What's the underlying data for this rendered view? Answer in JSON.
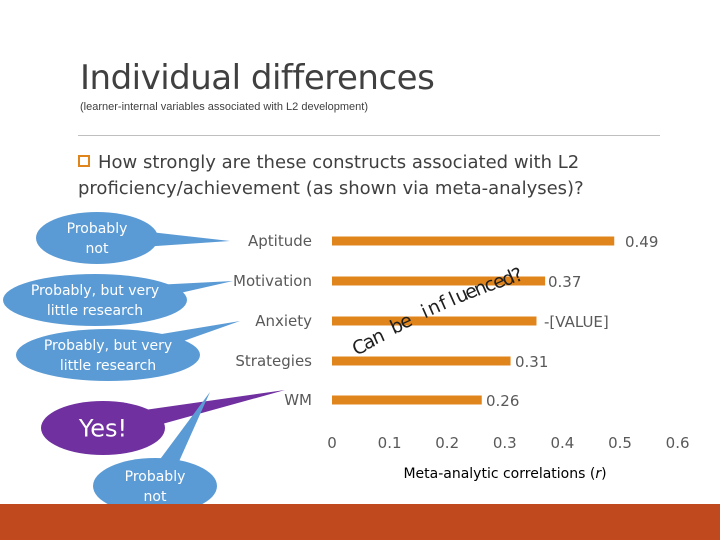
{
  "slide": {
    "title": "Individual differences",
    "subtitle": "(learner-internal variables associated with L2 development)",
    "question_line1": "How strongly are these constructs associated with L2",
    "question_line2": "proficiency/achievement (as shown via meta-analyses)?",
    "annotation": "Can be influenced?"
  },
  "callouts": [
    {
      "text": [
        "Probably",
        "not"
      ],
      "color": "#5b9bd5"
    },
    {
      "text": [
        "Probably, but very",
        "little research"
      ],
      "color": "#5b9bd5"
    },
    {
      "text": [
        "Probably, but very",
        "little research"
      ],
      "color": "#5b9bd5"
    },
    {
      "text": [
        "Yes!"
      ],
      "color": "#7030a0"
    },
    {
      "text": [
        "Probably",
        "not"
      ],
      "color": "#5b9bd5"
    }
  ],
  "chart_data": {
    "type": "bar",
    "orientation": "horizontal",
    "categories": [
      "Aptitude",
      "Motivation",
      "Anxiety",
      "Strategies",
      "WM"
    ],
    "values": [
      0.49,
      0.37,
      null,
      0.31,
      0.26
    ],
    "data_labels": [
      "0.49",
      "0.37",
      "-[VALUE]",
      "0.31",
      "0.26"
    ],
    "xlabel": "Meta-analytic correlations (r)",
    "xlim": [
      0,
      0.6
    ],
    "xticks": [
      "0",
      "0.1",
      "0.2",
      "0.3",
      "0.4",
      "0.5",
      "0.6"
    ],
    "bar_color": "#e0841c",
    "grid": false
  }
}
